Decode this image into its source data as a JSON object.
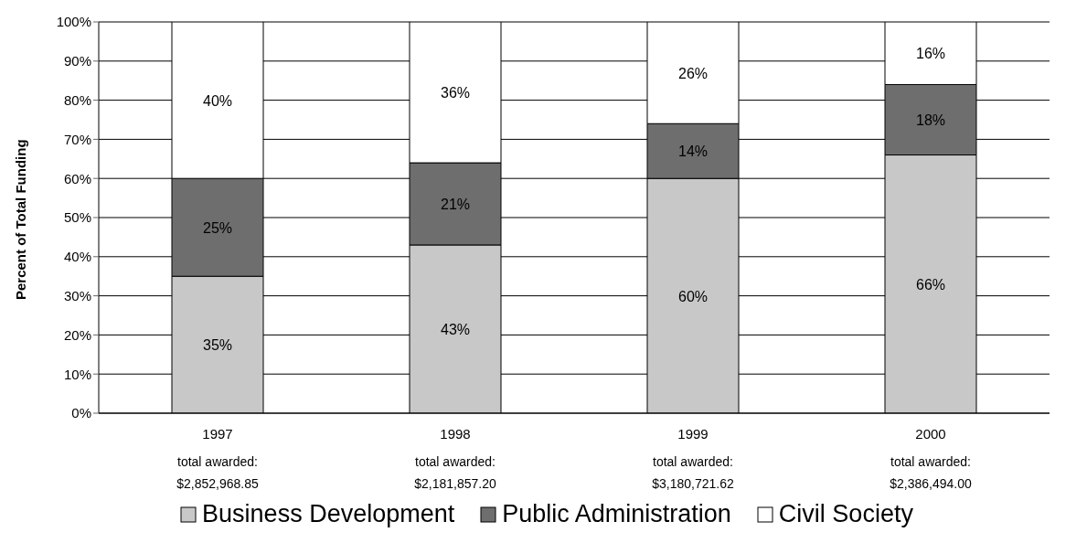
{
  "chart_data": {
    "type": "bar",
    "stacked": true,
    "categories": [
      "1997",
      "1998",
      "1999",
      "2000"
    ],
    "series": [
      {
        "name": "Business Development",
        "color": "#c8c8c8",
        "values": [
          35,
          43,
          60,
          66
        ],
        "value_labels": [
          "35%",
          "43%",
          "60%",
          "66%"
        ]
      },
      {
        "name": "Public Administration",
        "color": "#6e6e6e",
        "values": [
          25,
          21,
          14,
          18
        ],
        "value_labels": [
          "25%",
          "21%",
          "14%",
          "18%"
        ]
      },
      {
        "name": "Civil Society",
        "color": "#ffffff",
        "values": [
          40,
          36,
          26,
          16
        ],
        "value_labels": [
          "40%",
          "36%",
          "26%",
          "16%"
        ]
      }
    ],
    "ylabel": "Percent of Total Funding",
    "ylim": [
      0,
      100
    ],
    "yticks": [
      {
        "value": 0,
        "label": "0%"
      },
      {
        "value": 10,
        "label": "10%"
      },
      {
        "value": 20,
        "label": "20%"
      },
      {
        "value": 30,
        "label": "30%"
      },
      {
        "value": 40,
        "label": "40%"
      },
      {
        "value": 50,
        "label": "50%"
      },
      {
        "value": 60,
        "label": "60%"
      },
      {
        "value": 70,
        "label": "70%"
      },
      {
        "value": 80,
        "label": "80%"
      },
      {
        "value": 90,
        "label": "90%"
      },
      {
        "value": 100,
        "label": "100%"
      }
    ],
    "annotations": [
      "total awarded: $2,852,968.85",
      "total awarded: $2,181,857.20",
      "total awarded: $3,180,721.62",
      "total awarded: $2,386,494.00"
    ],
    "grid": "y",
    "legend": "bottom"
  }
}
